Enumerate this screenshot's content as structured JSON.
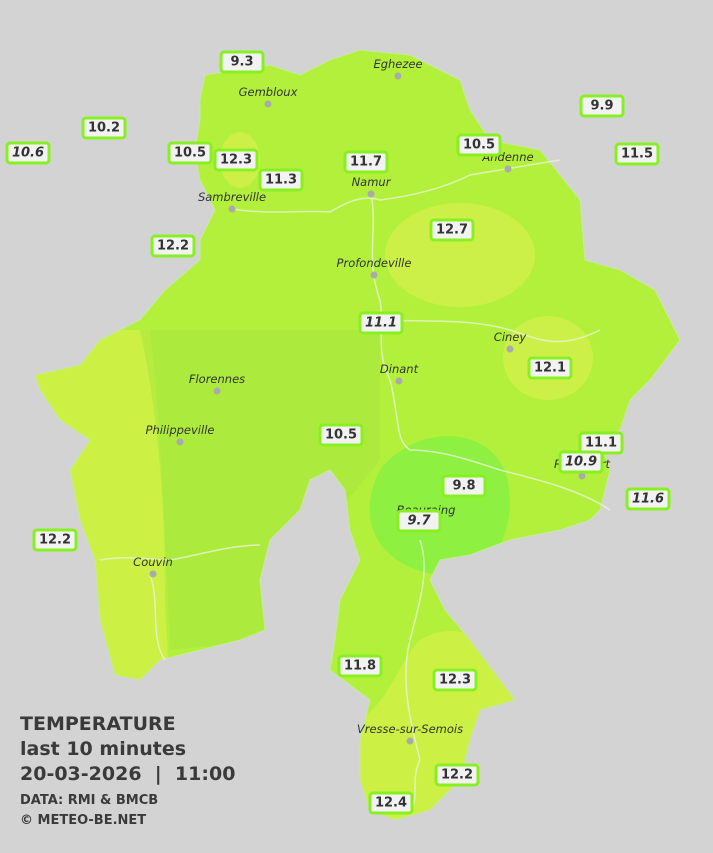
{
  "title": "TEMPERATURE",
  "subtitle": "last 10 minutes",
  "timestamp": "20-03-2026  |  11:00",
  "source": "DATA: RMI & BMCB",
  "credit": "© METEO-BE.NET",
  "cities": [
    "Eghezee",
    "Gembloux",
    "Andenne",
    "Namur",
    "Sambreville",
    "Profondeville",
    "Ciney",
    "Dinant",
    "Florennes",
    "Philippeville",
    "Rochefort",
    "Beauraing",
    "Couvin",
    "Vresse-sur-Semois"
  ],
  "stations": [
    9.3,
    10.2,
    10.6,
    10.5,
    12.3,
    11.3,
    11.7,
    10.5,
    9.9,
    11.5,
    12.2,
    12.7,
    11.1,
    12.1,
    10.5,
    11.1,
    10.9,
    9.8,
    9.7,
    11.6,
    12.2,
    11.8,
    12.3,
    12.2,
    12.4
  ]
}
